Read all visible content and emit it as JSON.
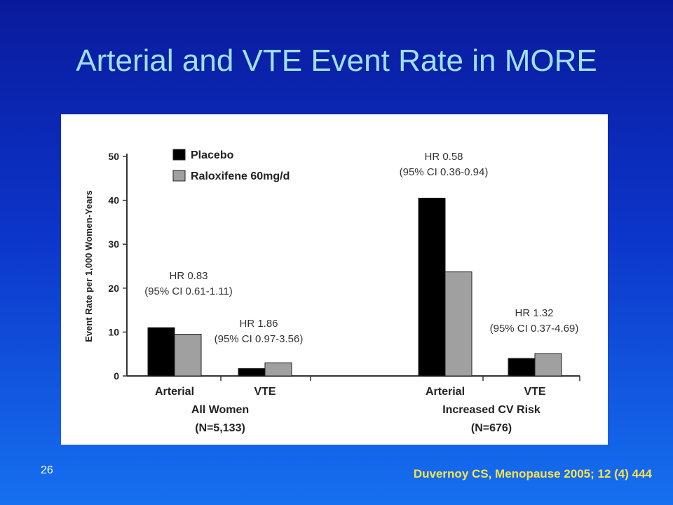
{
  "slide": {
    "title": "Arterial and VTE Event Rate in MORE",
    "page_number": "26",
    "citation": "Duvernoy CS, Menopause 2005; 12 (4) 444"
  },
  "colors": {
    "background_top": "#0a1a9c",
    "background_bottom": "#1670f0",
    "title": "#9fe0f4",
    "citation": "#f7e34a",
    "placebo": "#000000",
    "raloxifene": "#a0a0a0"
  },
  "chart_data": {
    "type": "bar",
    "ylabel": "Event Rate per 1,000 Women-Years",
    "ylim": [
      0,
      50
    ],
    "yticks": [
      "0",
      "10",
      "20",
      "30",
      "40",
      "50"
    ],
    "categories": [
      "Arterial",
      "VTE",
      "Arterial",
      "VTE"
    ],
    "groups": [
      {
        "label": "All Women",
        "sublabel": "(N=5,133)"
      },
      {
        "label": "Increased CV Risk",
        "sublabel": "(N=676)"
      }
    ],
    "series": [
      {
        "name": "Placebo",
        "color": "#000000",
        "values": [
          11.0,
          1.7,
          40.5,
          4.0
        ]
      },
      {
        "name": "Raloxifene 60mg/d",
        "color": "#a0a0a0",
        "values": [
          9.5,
          3.0,
          23.7,
          5.1
        ]
      }
    ],
    "annotations": [
      {
        "line1": "HR 0.83",
        "line2": "(95% CI 0.61-1.11)"
      },
      {
        "line1": "HR 1.86",
        "line2": "(95% CI 0.97-3.56)"
      },
      {
        "line1": "HR 0.58",
        "line2": "(95% CI 0.36-0.94)"
      },
      {
        "line1": "HR 1.32",
        "line2": "(95% CI 0.37-4.69)"
      }
    ],
    "legend_position": "top-left"
  }
}
